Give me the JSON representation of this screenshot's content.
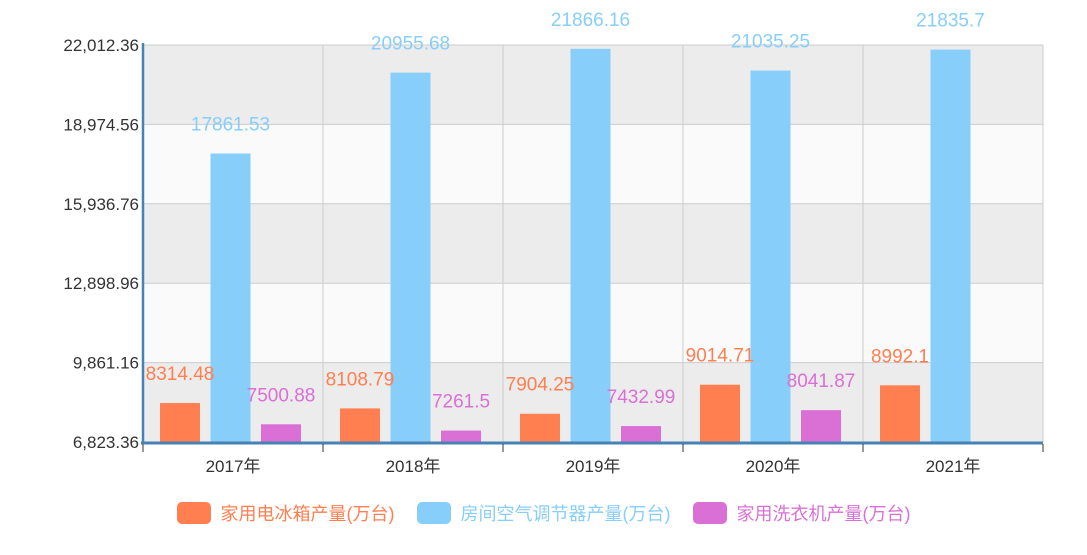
{
  "chart_data": {
    "type": "bar",
    "categories": [
      "2017年",
      "2018年",
      "2019年",
      "2020年",
      "2021年"
    ],
    "ylim": [
      6823.36,
      22012.36
    ],
    "yticks": [
      "6,823.36",
      "9,861.16",
      "12,898.96",
      "15,936.76",
      "18,974.56",
      "22,012.36"
    ],
    "ytick_values": [
      6823.36,
      9861.16,
      12898.96,
      15936.76,
      18974.56,
      22012.36
    ],
    "grid": true,
    "legend_position": "bottom",
    "series": [
      {
        "name": "家用电冰箱产量(万台)",
        "color": "#FF7F50",
        "values": [
          8314.48,
          8108.79,
          7904.25,
          9014.71,
          8992.1
        ],
        "labels": [
          "8314.48",
          "8108.79",
          "7904.25",
          "9014.71",
          "8992.1"
        ]
      },
      {
        "name": "房间空气调节器产量(万台)",
        "color": "#87CEFA",
        "values": [
          17861.53,
          20955.68,
          21866.16,
          21035.25,
          21835.7
        ],
        "labels": [
          "17861.53",
          "20955.68",
          "21866.16",
          "21035.25",
          "21835.7"
        ]
      },
      {
        "name": "家用洗衣机产量(万台)",
        "color": "#DA70D6",
        "values": [
          7500.88,
          7261.5,
          7432.99,
          8041.87,
          null
        ],
        "labels": [
          "7500.88",
          "7261.5",
          "7432.99",
          "8041.87",
          ""
        ]
      }
    ]
  }
}
